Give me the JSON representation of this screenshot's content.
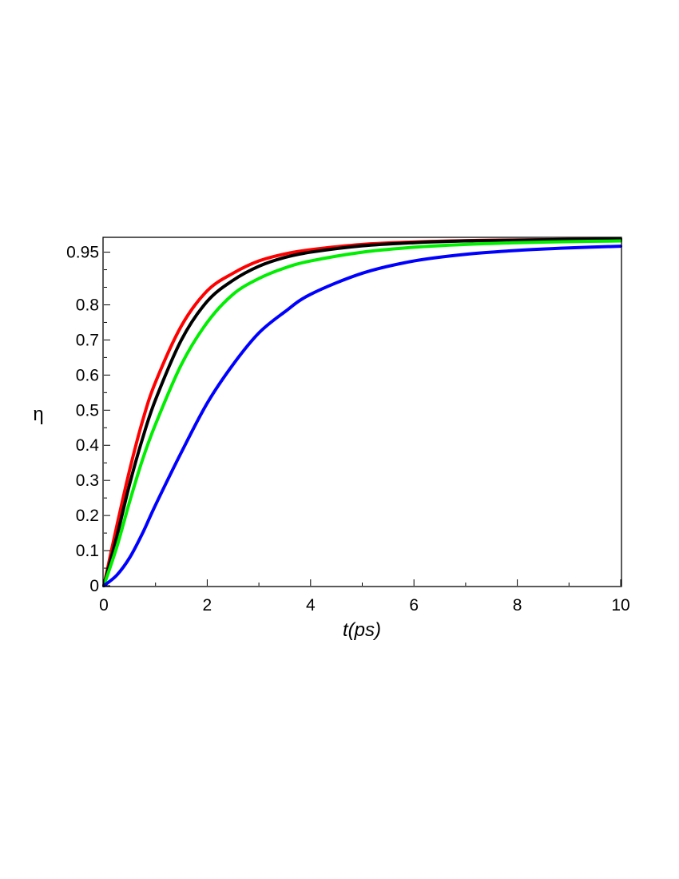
{
  "chart_data": {
    "type": "line",
    "xlabel": "t(ps)",
    "ylabel": "η",
    "xlim": [
      0,
      10
    ],
    "ylim": [
      0,
      0.99
    ],
    "xticks": [
      "0",
      "2",
      "4",
      "6",
      "8",
      "10"
    ],
    "yticks": [
      "0",
      "0.1",
      "0.2",
      "0.3",
      "0.4",
      "0.5",
      "0.6",
      "0.7",
      "0.8",
      "0.95"
    ],
    "ytick_values": [
      0,
      0.1,
      0.2,
      0.3,
      0.4,
      0.5,
      0.6,
      0.7,
      0.8,
      0.95
    ],
    "grid": false,
    "legend": "none",
    "x": [
      0,
      0.25,
      0.5,
      0.75,
      1,
      1.5,
      2,
      2.5,
      3,
      3.5,
      4,
      5,
      6,
      7,
      8,
      9,
      10
    ],
    "series": [
      {
        "color": "#ff0000",
        "values": [
          0,
          0.17,
          0.33,
          0.47,
          0.58,
          0.74,
          0.84,
          0.89,
          0.925,
          0.945,
          0.957,
          0.972,
          0.979,
          0.983,
          0.985,
          0.986,
          0.987
        ]
      },
      {
        "color": "#000000",
        "values": [
          0,
          0.14,
          0.29,
          0.42,
          0.53,
          0.7,
          0.81,
          0.87,
          0.91,
          0.935,
          0.95,
          0.968,
          0.977,
          0.982,
          0.984,
          0.986,
          0.987
        ]
      },
      {
        "color": "#00ee00",
        "values": [
          0,
          0.11,
          0.24,
          0.36,
          0.46,
          0.63,
          0.75,
          0.83,
          0.875,
          0.905,
          0.925,
          0.95,
          0.964,
          0.972,
          0.977,
          0.98,
          0.982
        ]
      },
      {
        "color": "#0000ff",
        "values": [
          0,
          0.03,
          0.08,
          0.15,
          0.23,
          0.38,
          0.52,
          0.63,
          0.72,
          0.78,
          0.83,
          0.89,
          0.925,
          0.944,
          0.955,
          0.962,
          0.967
        ]
      }
    ]
  }
}
